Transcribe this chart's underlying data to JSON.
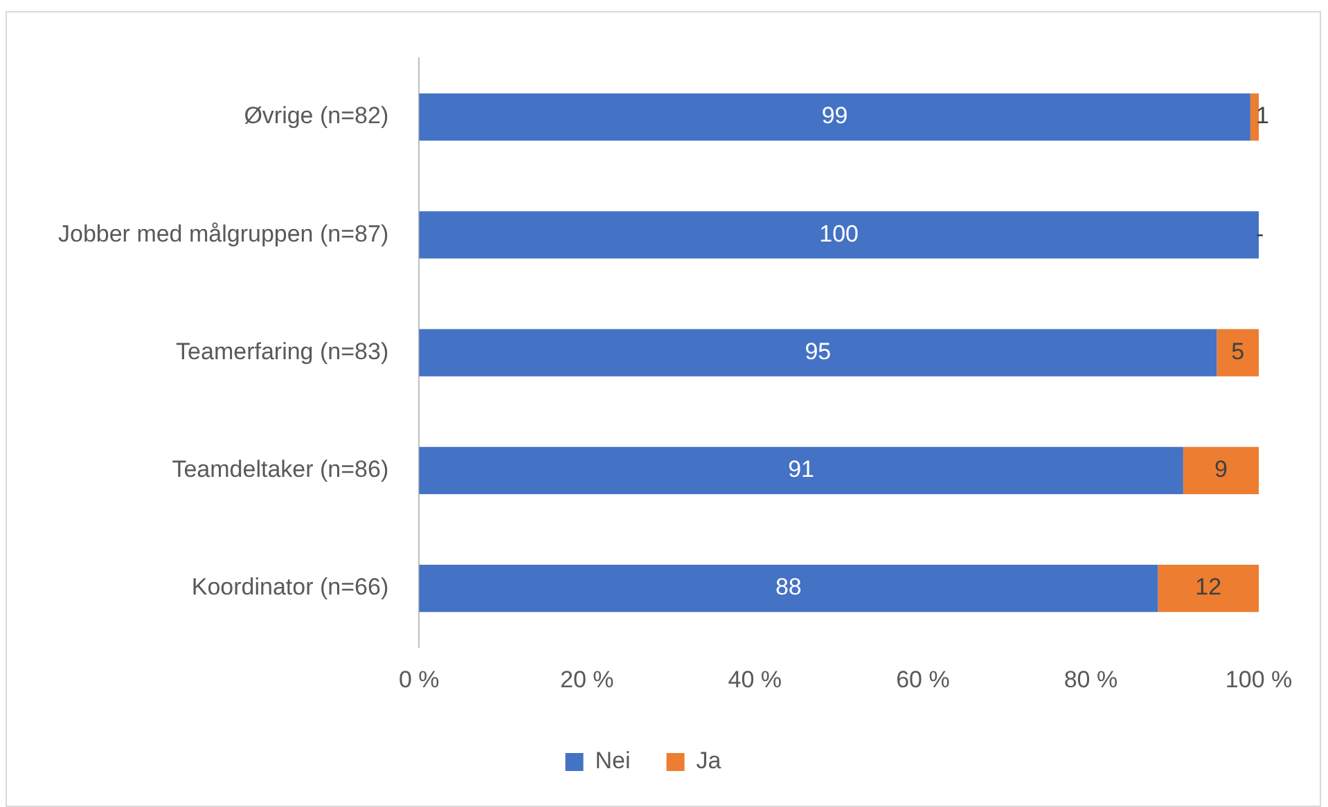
{
  "chart_data": {
    "type": "bar",
    "orientation": "horizontal",
    "stacked": true,
    "categories": [
      "Øvrige (n=82)",
      "Jobber med målgruppen (n=87)",
      "Teamerfaring (n=83)",
      "Teamdeltaker (n=86)",
      "Koordinator (n=66)"
    ],
    "series": [
      {
        "name": "Nei",
        "color": "#4472c4",
        "values": [
          99,
          100,
          95,
          91,
          88
        ],
        "value_labels": [
          "99",
          "100",
          "95",
          "91",
          "88"
        ]
      },
      {
        "name": "Ja",
        "color": "#ed7d31",
        "values": [
          1,
          0,
          5,
          9,
          12
        ],
        "value_labels": [
          "1",
          "-",
          "5",
          "9",
          "12"
        ]
      }
    ],
    "xlim": [
      0,
      100
    ],
    "xticks": [
      {
        "value": 0,
        "label": "0 %"
      },
      {
        "value": 20,
        "label": "20 %"
      },
      {
        "value": 40,
        "label": "40 %"
      },
      {
        "value": 60,
        "label": "60 %"
      },
      {
        "value": 80,
        "label": "80 %"
      },
      {
        "value": 100,
        "label": "100 %"
      }
    ],
    "grid": false,
    "legend": "bottom"
  }
}
